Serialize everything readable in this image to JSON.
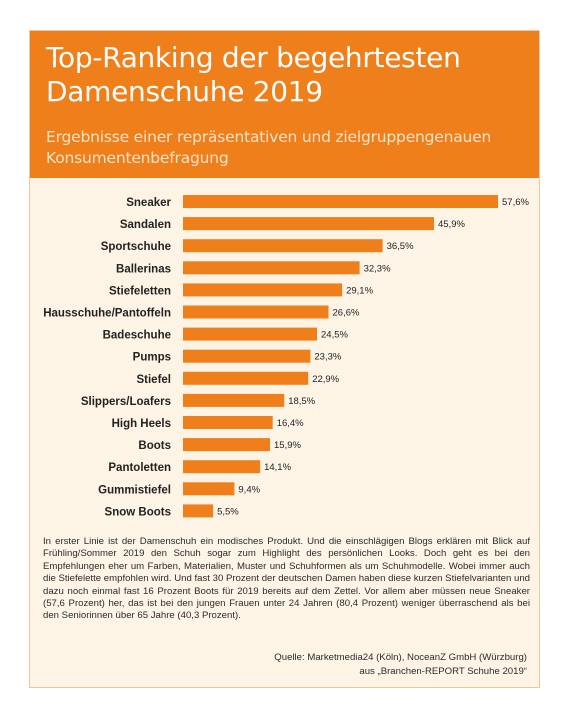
{
  "header": {
    "title": "Top-Ranking der begehrtesten Damenschuhe 2019",
    "subtitle": "Ergebnisse einer repräsentativen und zielgruppengenauen Konsumentenbefragung"
  },
  "chart_data": {
    "type": "bar",
    "orientation": "horizontal",
    "title": "Top-Ranking der begehrtesten Damenschuhe 2019",
    "subtitle": "Ergebnisse einer repräsentativen und zielgruppengenauen Konsumentenbefragung",
    "categories": [
      "Sneaker",
      "Sandalen",
      "Sportschuhe",
      "Ballerinas",
      "Stiefeletten",
      "Hausschuhe/Pantoffeln",
      "Badeschuhe",
      "Pumps",
      "Stiefel",
      "Slippers/Loafers",
      "High Heels",
      "Boots",
      "Pantoletten",
      "Gummistiefel",
      "Snow Boots"
    ],
    "values": [
      57.6,
      45.9,
      36.5,
      32.3,
      29.1,
      26.6,
      24.5,
      23.3,
      22.9,
      18.5,
      16.4,
      15.9,
      14.1,
      9.4,
      5.5
    ],
    "value_labels": [
      "57,6%",
      "45,9%",
      "36,5%",
      "32,3%",
      "29,1%",
      "26,6%",
      "24,5%",
      "23,3%",
      "22,9%",
      "18,5%",
      "16,4%",
      "15,9%",
      "14,1%",
      "9,4%",
      "5,5%"
    ],
    "xlim": [
      0,
      57.6
    ],
    "grid": false,
    "legend": "none",
    "bar_color": "#ee7f1a"
  },
  "body_text": "In erster Linie ist der Damenschuh ein modisches Produkt. Und die einschlägigen Blogs erklären mit Blick auf Frühling/Sommer 2019 den Schuh sogar zum Highlight des persönlichen Looks. Doch geht es bei den Empfehlungen eher um Farben, Materialien, Muster und Schuhformen als um Schuhmodelle. Wobei immer auch die Stiefelette empfohlen wird. Und fast 30 Prozent der deutschen Damen haben diese kurzen Stiefelvarianten und dazu noch einmal fast 16 Prozent Boots für 2019 bereits auf dem Zettel. Vor allem aber müssen neue Sneaker (57,6 Prozent) her, das ist bei den jungen Frauen unter 24 Jahren (80,4 Prozent) weniger überraschend als bei den Seniorinnen über 65 Jahre (40,3 Prozent).",
  "source": {
    "line1": "Quelle: Marketmedia24 (Köln), NoceanZ GmbH (Würzburg)",
    "line2": "aus „Branchen-REPORT Schuhe 2019“"
  },
  "colors": {
    "accent": "#ee7f1a",
    "background": "#fdf4e6",
    "text": "#222222"
  }
}
